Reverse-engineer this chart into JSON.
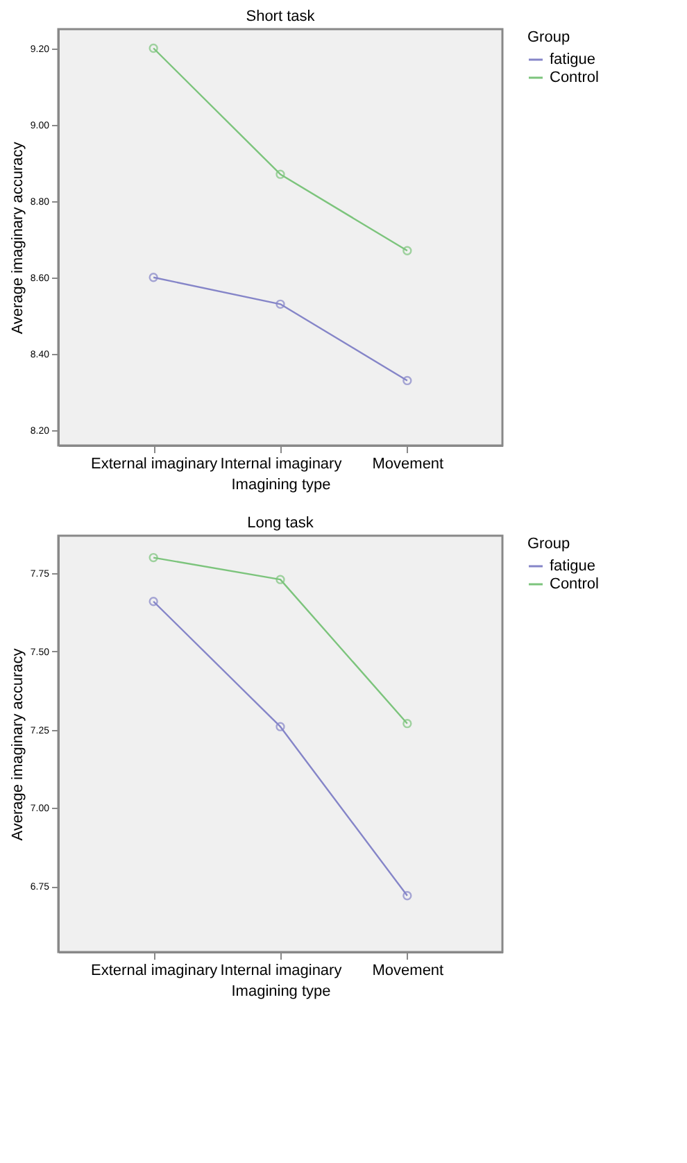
{
  "chart_data": [
    {
      "type": "line",
      "title": "Short task",
      "xlabel": "Imagining type",
      "ylabel": "Average imaginary accuracy",
      "legend_title": "Group",
      "legend": "right",
      "grid": false,
      "marker": "circle",
      "line_style": "solid",
      "categories": [
        "External imaginary",
        "Internal imaginary",
        "Movement"
      ],
      "ylim": [
        8.16,
        9.25
      ],
      "yticks": [
        {
          "value": 8.2,
          "label": "8.20"
        },
        {
          "value": 8.4,
          "label": "8.40"
        },
        {
          "value": 8.6,
          "label": "8.60"
        },
        {
          "value": 8.8,
          "label": "8.80"
        },
        {
          "value": 9.0,
          "label": "9.00"
        },
        {
          "value": 9.2,
          "label": "9.20"
        }
      ],
      "series": [
        {
          "name": "fatigue",
          "color": "#8585c8",
          "values": [
            8.6,
            8.53,
            8.33
          ]
        },
        {
          "name": "Control",
          "color": "#7cc47c",
          "values": [
            9.2,
            8.87,
            8.67
          ]
        }
      ]
    },
    {
      "type": "line",
      "title": "Long task",
      "xlabel": "Imagining type",
      "ylabel": "Average imaginary accuracy",
      "legend_title": "Group",
      "legend": "right",
      "grid": false,
      "marker": "circle",
      "line_style": "solid",
      "categories": [
        "External imaginary",
        "Internal imaginary",
        "Movement"
      ],
      "ylim": [
        6.54,
        7.87
      ],
      "yticks": [
        {
          "value": 6.75,
          "label": "6.75"
        },
        {
          "value": 7.0,
          "label": "7.00"
        },
        {
          "value": 7.25,
          "label": "7.25"
        },
        {
          "value": 7.5,
          "label": "7.50"
        },
        {
          "value": 7.75,
          "label": "7.75"
        }
      ],
      "series": [
        {
          "name": "fatigue",
          "color": "#8585c8",
          "values": [
            7.66,
            7.26,
            6.72
          ]
        },
        {
          "name": "Control",
          "color": "#7cc47c",
          "values": [
            7.8,
            7.73,
            7.27
          ]
        }
      ]
    }
  ]
}
